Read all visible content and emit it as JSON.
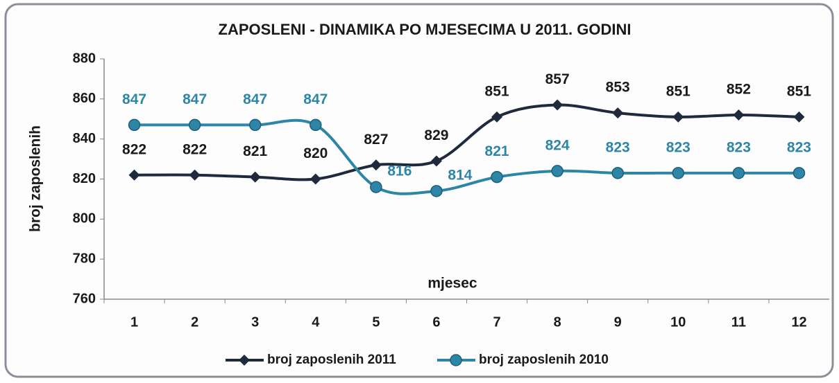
{
  "chart_data": {
    "type": "line",
    "title": "ZAPOSLENI - DINAMIKA PO MJESECIMA U 2011. GODINI",
    "x_label": "mjesec",
    "y_label": "broj zaposlenih",
    "categories": [
      "1",
      "2",
      "3",
      "4",
      "5",
      "6",
      "7",
      "8",
      "9",
      "10",
      "11",
      "12"
    ],
    "series": [
      {
        "name": "broj zaposlenih 2011",
        "color": "#1f2a3c",
        "marker": "diamond",
        "values": [
          822,
          822,
          821,
          820,
          827,
          829,
          851,
          857,
          853,
          851,
          852,
          851
        ]
      },
      {
        "name": "broj zaposlenih 2010",
        "color": "#2e86a6",
        "marker": "circle",
        "values": [
          847,
          847,
          847,
          847,
          816,
          814,
          821,
          824,
          823,
          823,
          823,
          823
        ]
      }
    ],
    "ylim": [
      760,
      880
    ],
    "yticks": [
      760,
      780,
      800,
      820,
      840,
      860,
      880
    ],
    "grid": false,
    "legend": "bottom",
    "smooth": true
  }
}
